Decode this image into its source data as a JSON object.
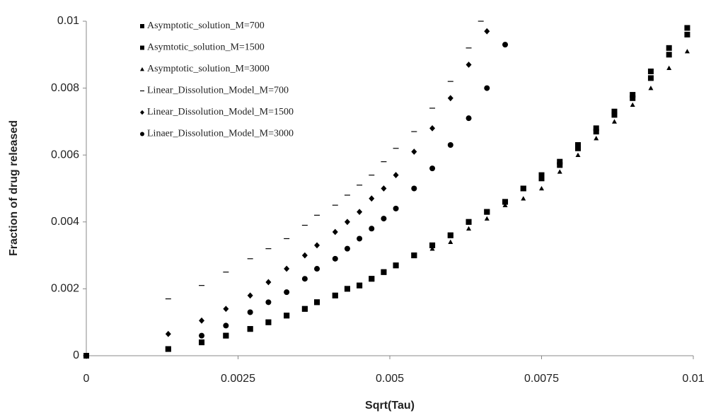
{
  "chart_data": {
    "type": "scatter",
    "xlabel": "Sqrt(Tau)",
    "ylabel": "Fraction of drug released",
    "xlim": [
      0,
      0.01
    ],
    "ylim": [
      0,
      0.01
    ],
    "xticks": [
      0,
      0.0025,
      0.005,
      0.0075,
      0.01
    ],
    "yticks": [
      0,
      0.002,
      0.004,
      0.006,
      0.008,
      0.01
    ],
    "series": [
      {
        "name": "Asymptotic_solution_M=700",
        "color": "#000000",
        "marker": "square",
        "x": [
          0,
          0.00135,
          0.0019,
          0.0023,
          0.0027,
          0.003,
          0.0033,
          0.0036,
          0.0038,
          0.0041,
          0.0043,
          0.0045,
          0.0047,
          0.0049,
          0.0051,
          0.0054,
          0.0057,
          0.006,
          0.0063,
          0.0066,
          0.0069,
          0.0072,
          0.0075,
          0.0078,
          0.0081,
          0.0084,
          0.0087,
          0.009,
          0.0093,
          0.0096,
          0.0099
        ],
        "values": [
          0,
          0.0002,
          0.0004,
          0.0006,
          0.0008,
          0.001,
          0.0012,
          0.0014,
          0.0016,
          0.0018,
          0.002,
          0.0021,
          0.0023,
          0.0025,
          0.0027,
          0.003,
          0.0033,
          0.0036,
          0.004,
          0.0043,
          0.0046,
          0.005,
          0.0054,
          0.0058,
          0.0063,
          0.0068,
          0.0073,
          0.0078,
          0.0085,
          0.0092,
          0.0098
        ]
      },
      {
        "name": "Asymtotic_solution_M=1500",
        "color": "#000000",
        "marker": "square",
        "x": [
          0,
          0.00135,
          0.0019,
          0.0023,
          0.0027,
          0.003,
          0.0033,
          0.0036,
          0.0038,
          0.0041,
          0.0043,
          0.0045,
          0.0047,
          0.0049,
          0.0051,
          0.0054,
          0.0057,
          0.006,
          0.0063,
          0.0066,
          0.0069,
          0.0072,
          0.0075,
          0.0078,
          0.0081,
          0.0084,
          0.0087,
          0.009,
          0.0093,
          0.0096,
          0.0099
        ],
        "values": [
          0,
          0.0002,
          0.0004,
          0.0006,
          0.0008,
          0.001,
          0.0012,
          0.0014,
          0.0016,
          0.0018,
          0.002,
          0.0021,
          0.0023,
          0.0025,
          0.0027,
          0.003,
          0.0033,
          0.0036,
          0.004,
          0.0043,
          0.0046,
          0.005,
          0.0053,
          0.0057,
          0.0062,
          0.0067,
          0.0072,
          0.0077,
          0.0083,
          0.009,
          0.0096
        ]
      },
      {
        "name": "Asymptotic_solution_M=3000",
        "color": "#000000",
        "marker": "triangle",
        "x": [
          0,
          0.00135,
          0.0019,
          0.0023,
          0.0027,
          0.003,
          0.0033,
          0.0036,
          0.0038,
          0.0041,
          0.0043,
          0.0045,
          0.0047,
          0.0049,
          0.0051,
          0.0054,
          0.0057,
          0.006,
          0.0063,
          0.0066,
          0.0069,
          0.0072,
          0.0075,
          0.0078,
          0.0081,
          0.0084,
          0.0087,
          0.009,
          0.0093,
          0.0096,
          0.0099
        ],
        "values": [
          0,
          0.0002,
          0.0004,
          0.0006,
          0.0008,
          0.001,
          0.0012,
          0.0014,
          0.0016,
          0.0018,
          0.002,
          0.0021,
          0.0023,
          0.0025,
          0.0027,
          0.003,
          0.0032,
          0.0034,
          0.0038,
          0.0041,
          0.0045,
          0.0047,
          0.005,
          0.0055,
          0.006,
          0.0065,
          0.007,
          0.0075,
          0.008,
          0.0086,
          0.0091
        ]
      },
      {
        "name": "Linear_Dissolution_Model_M=700",
        "color": "#000000",
        "marker": "dash",
        "x": [
          0.00135,
          0.0019,
          0.0023,
          0.0027,
          0.003,
          0.0033,
          0.0036,
          0.0038,
          0.0041,
          0.0043,
          0.0045,
          0.0047,
          0.0049,
          0.0051,
          0.0054,
          0.0057,
          0.006,
          0.0063,
          0.0065
        ],
        "values": [
          0.0017,
          0.0021,
          0.0025,
          0.0029,
          0.0032,
          0.0035,
          0.0039,
          0.0042,
          0.0045,
          0.0048,
          0.0051,
          0.0054,
          0.0058,
          0.0062,
          0.0067,
          0.0074,
          0.0082,
          0.0092,
          0.01
        ]
      },
      {
        "name": "Linear_Dissolution_Model_M=1500",
        "color": "#000000",
        "marker": "diamond",
        "x": [
          0.00135,
          0.0019,
          0.0023,
          0.0027,
          0.003,
          0.0033,
          0.0036,
          0.0038,
          0.0041,
          0.0043,
          0.0045,
          0.0047,
          0.0049,
          0.0051,
          0.0054,
          0.0057,
          0.006,
          0.0063,
          0.0066
        ],
        "values": [
          0.00065,
          0.00105,
          0.0014,
          0.0018,
          0.0022,
          0.0026,
          0.003,
          0.0033,
          0.0037,
          0.004,
          0.0043,
          0.0047,
          0.005,
          0.0054,
          0.0061,
          0.0068,
          0.0077,
          0.0087,
          0.0097
        ]
      },
      {
        "name": "Linaer_Dissolution_Model_M=3000",
        "color": "#000000",
        "marker": "circle",
        "x": [
          0.0019,
          0.0023,
          0.0027,
          0.003,
          0.0033,
          0.0036,
          0.0038,
          0.0041,
          0.0043,
          0.0045,
          0.0047,
          0.0049,
          0.0051,
          0.0054,
          0.0057,
          0.006,
          0.0063,
          0.0066,
          0.0069
        ],
        "values": [
          0.0006,
          0.0009,
          0.0013,
          0.0016,
          0.0019,
          0.0023,
          0.0026,
          0.0029,
          0.0032,
          0.0035,
          0.0038,
          0.0041,
          0.0044,
          0.005,
          0.0056,
          0.0063,
          0.0071,
          0.008,
          0.0093
        ]
      }
    ]
  }
}
